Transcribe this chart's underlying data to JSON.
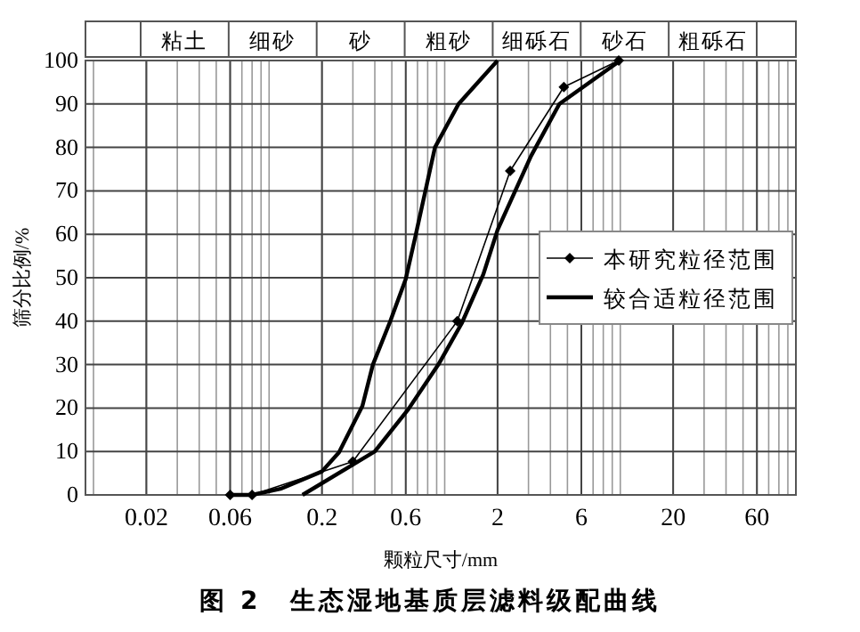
{
  "chart_data": {
    "type": "line",
    "title": "图 2　生态湿地基质层滤料级配曲线",
    "xlabel": "颗粒尺寸/mm",
    "ylabel": "筛分比例/%",
    "annotations": [
      "粘土",
      "细砂",
      "砂",
      "粗砂",
      "细砾石",
      "砂石",
      "粗砾石"
    ],
    "log": "x",
    "xlim": [
      0.009,
      100
    ],
    "xticks": [
      0.02,
      0.06,
      0.2,
      0.6,
      2,
      6,
      20,
      60
    ],
    "ylim": [
      0,
      100
    ],
    "yticks": [
      0,
      10,
      20,
      30,
      40,
      50,
      60,
      70,
      80,
      90,
      100
    ],
    "grid": true,
    "legend": "right",
    "series": [
      {
        "name": "本研究粒径范围",
        "color": "#000000",
        "marker": "diamond",
        "x": [
          0.06,
          0.08,
          0.3,
          1.18,
          2.36,
          4.77,
          9.8
        ],
        "values": [
          0,
          0,
          7.7,
          40,
          74.6,
          93.9,
          100
        ]
      },
      {
        "name": "较合适粒径范围",
        "color": "#000000",
        "marker": "none",
        "x": [
          0.06,
          0.08,
          0.116,
          0.2,
          0.25,
          0.34,
          0.39,
          0.49,
          0.6,
          0.68,
          0.88,
          1.2,
          2.0
        ],
        "values": [
          0,
          0,
          1.4,
          5.4,
          9.8,
          20.5,
          30,
          40,
          49.7,
          59.4,
          80,
          90,
          100
        ]
      },
      {
        "color": "#000000",
        "marker": "none",
        "x": [
          0.155,
          0.4,
          0.62,
          0.92,
          1.25,
          1.66,
          2.0,
          3.1,
          4.5,
          10
        ],
        "values": [
          0,
          10,
          19.7,
          30,
          39.5,
          50.8,
          61,
          78,
          90,
          100
        ]
      }
    ]
  }
}
